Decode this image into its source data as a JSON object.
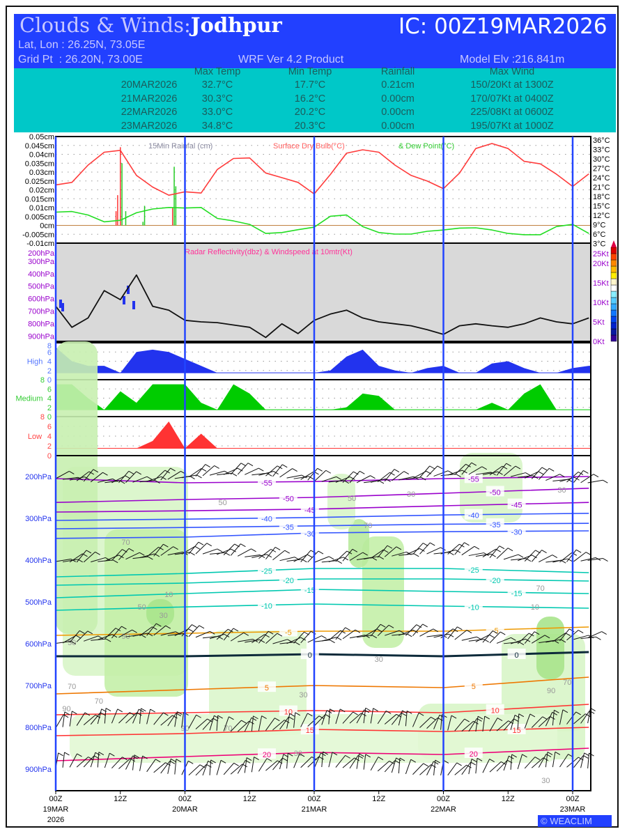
{
  "header": {
    "title_prefix": "Clouds & Winds:",
    "station": "Jodhpur",
    "ic": "IC: 00Z19MAR2026",
    "latlon": "Lat, Lon : 26.25N, 73.05E",
    "gridpt": "Grid Pt  : 26.20N, 73.00E",
    "product": "WRF Ver 4.2 Product",
    "elev": "Model Elv :216.841m"
  },
  "summary": {
    "headers": [
      "Max Temp",
      "Min Temp",
      "Rainfall",
      "Max Wind"
    ],
    "rows": [
      {
        "date": "20MAR2026",
        "max": "32.7°C",
        "min": "17.7°C",
        "rain": "0.21cm",
        "wind": "150/20Kt at 1300Z"
      },
      {
        "date": "21MAR2026",
        "max": "30.3°C",
        "min": "16.2°C",
        "rain": "0.00cm",
        "wind": "170/07Kt at 0400Z"
      },
      {
        "date": "22MAR2026",
        "max": "33.0°C",
        "min": "20.2°C",
        "rain": "0.00cm",
        "wind": "225/08Kt at 0600Z"
      },
      {
        "date": "23MAR2026",
        "max": "34.8°C",
        "min": "20.3°C",
        "rain": "0.00cm",
        "wind": "195/07Kt at 1000Z"
      }
    ]
  },
  "watermark": "© WEACLIM",
  "colors": {
    "day_line": "#2244ff",
    "temp": "#ff3b3b",
    "dew": "#22dd22",
    "high": "#2233ee",
    "medium": "#00cc00",
    "low": "#ff3333",
    "panel_gray": "#d9d9d9"
  },
  "chart_data": {
    "type": "meteogram",
    "hours_step": 3,
    "x_ticks": [
      {
        "h": 0,
        "l1": "00Z",
        "l2": "19MAR",
        "l3": "2026"
      },
      {
        "h": 12,
        "l1": "12Z"
      },
      {
        "h": 24,
        "l1": "00Z",
        "l2": "20MAR"
      },
      {
        "h": 36,
        "l1": "12Z"
      },
      {
        "h": 48,
        "l1": "00Z",
        "l2": "21MAR"
      },
      {
        "h": 60,
        "l1": "12Z"
      },
      {
        "h": 72,
        "l1": "00Z",
        "l2": "22MAR"
      },
      {
        "h": 84,
        "l1": "12Z"
      },
      {
        "h": 96,
        "l1": "00Z",
        "l2": "23MAR"
      }
    ],
    "surface": {
      "title_rain": "15Min Rainfal (cm)",
      "title_temp": "Surface Dry Bulb(°C)",
      "title_dew": "& Dew Point(°C)",
      "rain_ticks": [
        "0.05cm",
        "0.045cm",
        "0.04cm",
        "0.035cm",
        "0.03cm",
        "0.025cm",
        "0.02cm",
        "0.015cm",
        "0.01cm",
        "0.005cm",
        "0cm",
        "-0.005cm",
        "-0.01cm"
      ],
      "rain_range": [
        -0.01,
        0.05
      ],
      "temp_ticks": [
        "36°C",
        "33°C",
        "30°C",
        "27°C",
        "24°C",
        "21°C",
        "18°C",
        "15°C",
        "12°C",
        "9°C",
        "6°C",
        "3°C"
      ],
      "temp_range": [
        3,
        36
      ],
      "temp": [
        21.7,
        22.5,
        28,
        32.1,
        32.7,
        24.7,
        21,
        18.4,
        19.5,
        19.1,
        26.6,
        30.1,
        30.3,
        25.5,
        24,
        22.5,
        18.8,
        25,
        31.8,
        32.9,
        32.1,
        28,
        24.7,
        22.9,
        20.5,
        25.5,
        33.3,
        34.9,
        33.3,
        29.2,
        28.4,
        25.1,
        21.2,
        25.2
      ],
      "dew": [
        13,
        13.2,
        12.1,
        9.9,
        10.4,
        12.8,
        14,
        14.5,
        14.3,
        14.5,
        11,
        10.2,
        9.1,
        6.2,
        6.5,
        7.4,
        8.2,
        11.7,
        12.1,
        8.4,
        6.5,
        6,
        6,
        6.9,
        7.3,
        7.9,
        8,
        7.3,
        6.2,
        5.8,
        5.8,
        8.4,
        9.1,
        6.2
      ],
      "rain": [
        {
          "h": 11.5,
          "v": 0.017,
          "c": "red"
        },
        {
          "h": 12,
          "v": 0.044,
          "c": "red"
        },
        {
          "h": 12.3,
          "v": 0.035,
          "c": "green"
        },
        {
          "h": 11.2,
          "v": 0.008,
          "c": "red"
        },
        {
          "h": 13,
          "v": 0.008,
          "c": "green"
        },
        {
          "h": 16.5,
          "v": 0.011,
          "c": "green"
        },
        {
          "h": 16.2,
          "v": 0.002,
          "c": "green"
        },
        {
          "h": 22,
          "v": 0.033,
          "c": "green"
        },
        {
          "h": 22.3,
          "v": 0.022,
          "c": "green"
        },
        {
          "h": 21.7,
          "v": 0.01,
          "c": "red"
        }
      ]
    },
    "radar": {
      "title": "Radar Reflectivity(dbz) & Windspeed at 10mtr(Kt)",
      "p_ticks": [
        "200hPa",
        "300hPa",
        "400hPa",
        "500hPa",
        "600hPa",
        "700hPa",
        "800hPa",
        "900hPa"
      ],
      "wind_ticks": [
        "0Kt",
        "5Kt",
        "10Kt",
        "15Kt",
        "20Kt",
        "25Kt"
      ],
      "wind_range": [
        0,
        25
      ],
      "windspeed": [
        9,
        3.6,
        6,
        13,
        10.7,
        17,
        9,
        8,
        5.4,
        5,
        4.8,
        4.2,
        3.6,
        1,
        4.5,
        2,
        5.4,
        7,
        8,
        6,
        5,
        4.5,
        4,
        3,
        1.8,
        4,
        4.5,
        4,
        3.6,
        4.5,
        6,
        5,
        4.5,
        6
      ]
    },
    "clouds": {
      "range": [
        0,
        8
      ],
      "ticks": [
        "8",
        "6",
        "4",
        "2",
        "0"
      ],
      "high": {
        "label": "High",
        "values": [
          7,
          4,
          3,
          3,
          1.5,
          6,
          6.5,
          6,
          4.5,
          3,
          1.5,
          1.5,
          1.5,
          1.5,
          1.5,
          1.5,
          1.5,
          2,
          5,
          6.5,
          3,
          2,
          1.5,
          2.5,
          3,
          1.5,
          1.5,
          3.5,
          4,
          2.5,
          1.5,
          1.5,
          2.5,
          3
        ]
      },
      "medium": {
        "label": "Medium",
        "values": [
          7,
          7,
          4,
          1.5,
          5.5,
          3,
          7,
          7,
          7,
          3,
          1.5,
          7,
          5,
          1.5,
          1.5,
          1.5,
          1.5,
          1.5,
          2,
          5,
          4.5,
          1.5,
          1.5,
          1.5,
          1.5,
          1.5,
          1.5,
          3,
          1.5,
          5,
          7,
          1.5,
          1.5,
          1.5
        ]
      },
      "low": {
        "label": "Low",
        "values": [
          1.5,
          1.5,
          1.5,
          1.5,
          1.5,
          1.5,
          3,
          7,
          1.5,
          4.5,
          1.5,
          1.5,
          1.5,
          1.5,
          1.5,
          1.5,
          1.5,
          1.5,
          1.5,
          1.5,
          1.5,
          1.5,
          1.5,
          1.5,
          1.5,
          1.5,
          1.5,
          1.5,
          1.5,
          1.5,
          1.5,
          1.5,
          1.5,
          1.5
        ]
      }
    },
    "cross_section": {
      "p_ticks": [
        "200hPa",
        "300hPa",
        "400hPa",
        "500hPa",
        "600hPa",
        "700hPa",
        "800hPa",
        "900hPa"
      ],
      "isotherm_hours": [
        0,
        24,
        48,
        72,
        99
      ],
      "isotherms": [
        {
          "level": "-55",
          "p": [
            205,
            215,
            212,
            205,
            200
          ],
          "c": "#9900cc"
        },
        {
          "level": "-50",
          "p": [
            262,
            255,
            250,
            240,
            228
          ],
          "c": "#9900cc"
        },
        {
          "level": "-45",
          "p": [
            285,
            282,
            278,
            270,
            262
          ],
          "c": "#9900cc"
        },
        {
          "level": "-40",
          "p": [
            305,
            302,
            298,
            292,
            288
          ],
          "c": "#3355ff"
        },
        {
          "level": "-35",
          "p": [
            325,
            322,
            318,
            314,
            312
          ],
          "c": "#3355ff"
        },
        {
          "level": "-30",
          "p": [
            348,
            345,
            335,
            332,
            330
          ],
          "c": "#3355ff"
        },
        {
          "level": "-25",
          "p": [
            440,
            432,
            420,
            420,
            430
          ],
          "c": "#00c8b0"
        },
        {
          "level": "-20",
          "p": [
            460,
            455,
            445,
            445,
            450
          ],
          "c": "#00c8b0"
        },
        {
          "level": "-15",
          "p": [
            490,
            480,
            470,
            475,
            480
          ],
          "c": "#00c8b0"
        },
        {
          "level": "-10",
          "p": [
            520,
            512,
            505,
            510,
            515
          ],
          "c": "#00c8b0"
        },
        {
          "level": "-5",
          "p": [
            580,
            575,
            570,
            570,
            560
          ],
          "c": "#ee9900"
        },
        {
          "level": "0",
          "p": [
            630,
            630,
            625,
            630,
            620
          ],
          "c": "#0d2a3a"
        },
        {
          "level": "5",
          "p": [
            720,
            710,
            700,
            705,
            680
          ],
          "c": "#ee7700"
        },
        {
          "level": "10",
          "p": [
            770,
            765,
            760,
            765,
            745
          ],
          "c": "#ff3333"
        },
        {
          "level": "15",
          "p": [
            820,
            815,
            805,
            810,
            800
          ],
          "c": "#ff3333"
        },
        {
          "level": "20",
          "p": [
            880,
            870,
            860,
            865,
            850
          ],
          "c": "#ee0077"
        }
      ],
      "rh_labels": [
        {
          "t": "70",
          "h": 13,
          "p": 355
        },
        {
          "t": "50",
          "h": 16,
          "p": 510
        },
        {
          "t": "90",
          "h": 13,
          "p": 580
        },
        {
          "t": "70",
          "h": 3,
          "p": 710
        },
        {
          "t": "90",
          "h": 2,
          "p": 740
        },
        {
          "t": "70",
          "h": 8,
          "p": 735
        },
        {
          "t": "50",
          "h": 3,
          "p": 595
        },
        {
          "t": "30",
          "h": 20,
          "p": 530
        },
        {
          "t": "10",
          "h": 21,
          "p": 480
        },
        {
          "t": "50",
          "h": 55,
          "p": 250
        },
        {
          "t": "30",
          "h": 66,
          "p": 240
        },
        {
          "t": "70",
          "h": 58,
          "p": 315
        },
        {
          "t": "30",
          "h": 45,
          "p": 860
        },
        {
          "t": "30",
          "h": 60,
          "p": 635
        },
        {
          "t": "70",
          "h": 32,
          "p": 800
        },
        {
          "t": "90",
          "h": 24,
          "p": 800
        },
        {
          "t": "30",
          "h": 46,
          "p": 720
        },
        {
          "t": "90",
          "h": 92,
          "p": 710
        },
        {
          "t": "70",
          "h": 90,
          "p": 465
        },
        {
          "t": "10",
          "h": 89,
          "p": 510
        },
        {
          "t": "30",
          "h": 94,
          "p": 230
        },
        {
          "t": "50",
          "h": 31,
          "p": 260
        },
        {
          "t": "70",
          "h": 95,
          "p": 690
        },
        {
          "t": "30",
          "h": 91,
          "p": 925
        }
      ],
      "wind_rows_hpa": [
        205,
        395,
        590,
        800,
        905
      ]
    }
  }
}
